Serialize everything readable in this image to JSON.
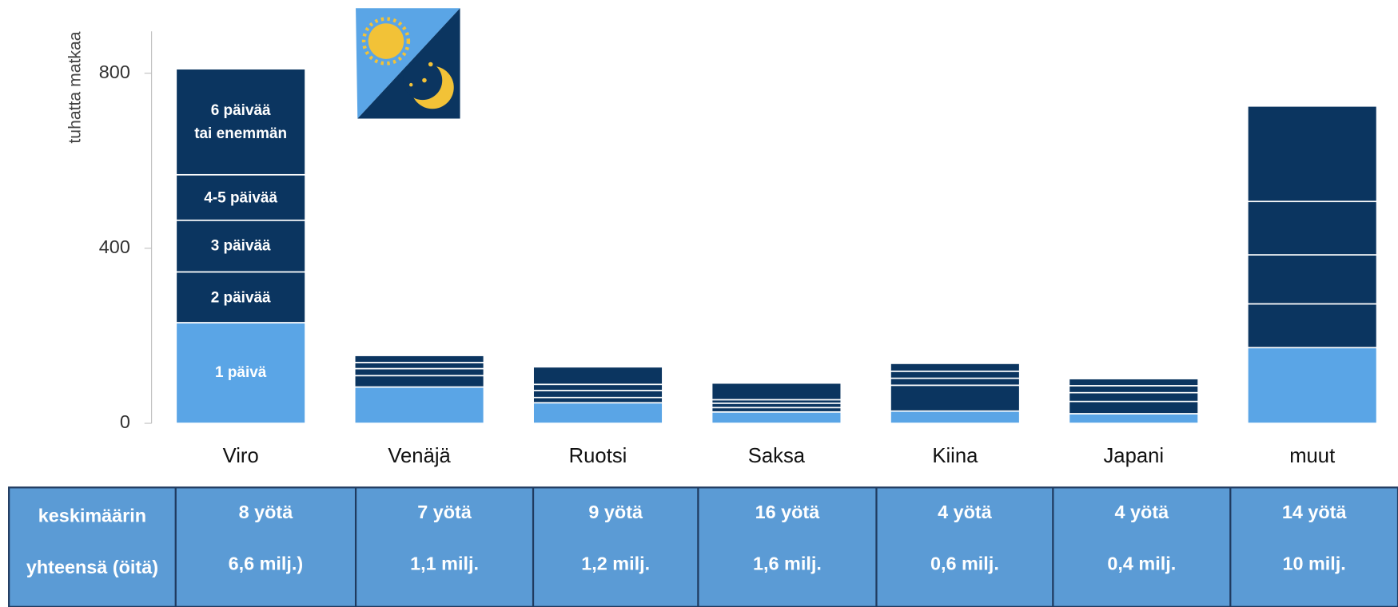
{
  "chart_data": {
    "type": "bar",
    "stacked": true,
    "y_label": "tuhatta matkaa",
    "categories": [
      "Viro",
      "Venäjä",
      "Ruotsi",
      "Saksa",
      "Kiina",
      "Japani",
      "muut"
    ],
    "series": [
      {
        "name": "1 päivä",
        "color": "#5aa5e6",
        "values": [
          230,
          83,
          47,
          26,
          28,
          22,
          173
        ]
      },
      {
        "name": "2 päivää",
        "color": "#0b3560",
        "values": [
          116,
          26,
          12,
          10,
          59,
          28,
          100
        ]
      },
      {
        "name": "3 päivää",
        "color": "#0b3560",
        "values": [
          118,
          16,
          16,
          10,
          16,
          20,
          112
        ]
      },
      {
        "name": "4-5 päivää",
        "color": "#0b3560",
        "values": [
          104,
          14,
          14,
          8,
          16,
          16,
          122
        ]
      },
      {
        "name": "6 päivää\ntai enemmän",
        "color": "#0b3560",
        "values": [
          242,
          16,
          40,
          38,
          18,
          16,
          218
        ]
      }
    ],
    "ylim": [
      0,
      900
    ],
    "yticks": [
      0,
      400,
      800
    ],
    "grid": false
  },
  "table": {
    "rows": [
      {
        "label": "keskimäärin",
        "cells": [
          "8 yötä",
          "7 yötä",
          "9 yötä",
          "16 yötä",
          "4 yötä",
          "4 yötä",
          "14 yötä"
        ]
      },
      {
        "label": "yhteensä (öitä)",
        "cells": [
          "6,6 milj.)",
          "1,1 milj.",
          "1,2 milj.",
          "1,6 milj.",
          "0,6 milj.",
          "0,4 milj.",
          "10 milj."
        ]
      }
    ]
  }
}
